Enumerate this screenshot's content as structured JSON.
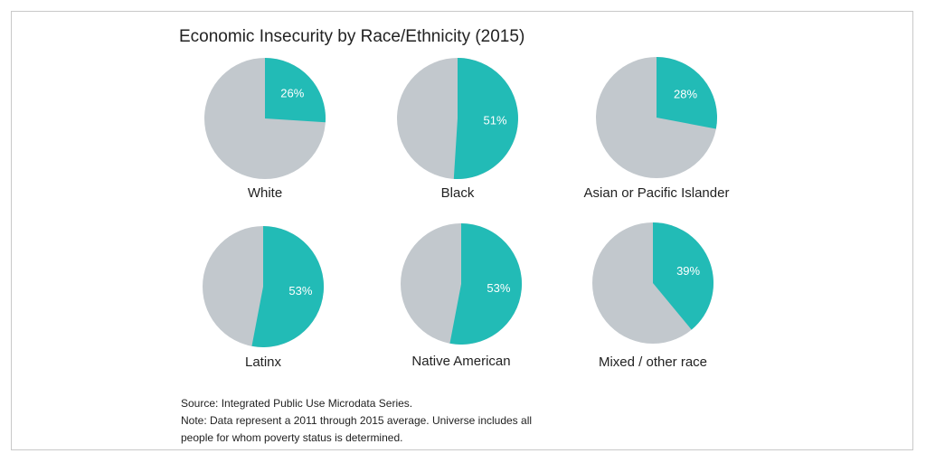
{
  "chart_data": {
    "type": "pie",
    "title": "Economic Insecurity by Race/Ethnicity (2015)",
    "colors": {
      "insecure": "#22bbb6",
      "remainder": "#c2c8cd"
    },
    "charts": [
      {
        "category": "White",
        "value": 26,
        "label": "26%"
      },
      {
        "category": "Black",
        "value": 51,
        "label": "51%"
      },
      {
        "category": "Asian or Pacific Islander",
        "value": 28,
        "label": "28%"
      },
      {
        "category": "Latinx",
        "value": 53,
        "label": "53%"
      },
      {
        "category": "Native American",
        "value": 53,
        "label": "53%"
      },
      {
        "category": "Mixed / other race",
        "value": 39,
        "label": "39%"
      }
    ]
  },
  "notes": {
    "source": "Source: Integrated Public Use Microdata Series.",
    "note_line1": "Note: Data represent a 2011 through 2015 average. Universe includes all",
    "note_line2": "people for whom poverty status is determined."
  }
}
